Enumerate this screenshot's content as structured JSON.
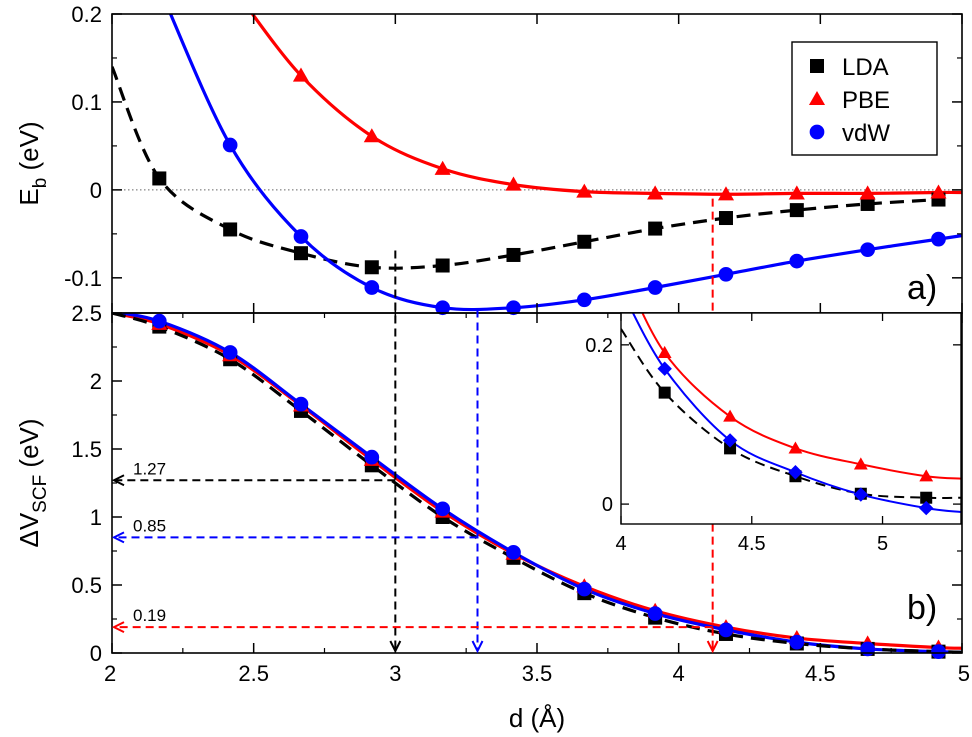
{
  "chart_data": [
    {
      "type": "line",
      "panel": "a)",
      "ylabel": "E",
      "ylabel_sub": "b",
      "ylabel_unit": " (eV)",
      "xlim": [
        2,
        5
      ],
      "ylim": [
        -0.14,
        0.2
      ],
      "yticks": [
        {
          "v": 0.2,
          "label": "0.2"
        },
        {
          "v": 0.1,
          "label": "0.1"
        },
        {
          "v": 0,
          "label": "0"
        },
        {
          "v": -0.1,
          "label": "-0.1"
        }
      ],
      "zero_line": true,
      "legend": {
        "position": "top-right",
        "entries": [
          "LDA",
          "PBE",
          "vdW"
        ]
      },
      "series": [
        {
          "name": "LDA",
          "color": "#000000",
          "marker": "square",
          "line": "dashed",
          "x": [
            2.167,
            2.417,
            2.667,
            2.917,
            3.167,
            3.417,
            3.667,
            3.917,
            4.167,
            4.417,
            4.667,
            4.917
          ],
          "y": [
            0.013,
            -0.045,
            -0.072,
            -0.088,
            -0.086,
            -0.074,
            -0.059,
            -0.044,
            -0.032,
            -0.023,
            -0.016,
            -0.011
          ]
        },
        {
          "name": "PBE",
          "color": "#ff0000",
          "marker": "triangle",
          "line": "solid",
          "x": [
            2.667,
            2.917,
            3.167,
            3.417,
            3.667,
            3.917,
            4.167,
            4.417,
            4.667,
            4.917
          ],
          "y": [
            0.13,
            0.061,
            0.024,
            0.006,
            -0.002,
            -0.004,
            -0.005,
            -0.004,
            -0.004,
            -0.003
          ]
        },
        {
          "name": "vdW",
          "color": "#0000ff",
          "marker": "circle",
          "line": "solid",
          "x": [
            2.417,
            2.667,
            2.917,
            3.167,
            3.417,
            3.667,
            3.917,
            4.167,
            4.417,
            4.667,
            4.917
          ],
          "y": [
            0.051,
            -0.053,
            -0.111,
            -0.134,
            -0.134,
            -0.125,
            -0.111,
            -0.096,
            -0.081,
            -0.068,
            -0.056
          ]
        }
      ]
    },
    {
      "type": "line",
      "panel": "b)",
      "ylabel": "ΔV",
      "ylabel_sub": "SCF",
      "ylabel_unit": " (eV)",
      "xlabel": "d (Å)",
      "xlim": [
        2,
        5
      ],
      "ylim": [
        0,
        2.5
      ],
      "xticks": [
        {
          "v": 2,
          "label": "2"
        },
        {
          "v": 2.5,
          "label": "2.5"
        },
        {
          "v": 3,
          "label": "3"
        },
        {
          "v": 3.5,
          "label": "3.5"
        },
        {
          "v": 4,
          "label": "4"
        },
        {
          "v": 4.5,
          "label": "4.5"
        },
        {
          "v": 5,
          "label": "5"
        }
      ],
      "yticks": [
        {
          "v": 2.5,
          "label": "2.5"
        },
        {
          "v": 2,
          "label": "2"
        },
        {
          "v": 1.5,
          "label": "1.5"
        },
        {
          "v": 1,
          "label": "1"
        },
        {
          "v": 0.5,
          "label": "0.5"
        },
        {
          "v": 0,
          "label": "0"
        }
      ],
      "series": [
        {
          "name": "LDA",
          "color": "#000000",
          "marker": "square",
          "line": "dashed",
          "x": [
            2.167,
            2.417,
            2.667,
            2.917,
            3.167,
            3.417,
            3.667,
            3.917,
            4.167,
            4.417,
            4.667,
            4.917
          ],
          "y": [
            2.4,
            2.16,
            1.78,
            1.38,
            1.0,
            0.7,
            0.44,
            0.26,
            0.14,
            0.07,
            0.03,
            0.01
          ]
        },
        {
          "name": "PBE",
          "color": "#ff0000",
          "marker": "triangle",
          "line": "solid",
          "x": [
            2.167,
            2.417,
            2.667,
            2.917,
            3.167,
            3.417,
            3.667,
            3.917,
            4.167,
            4.417,
            4.667,
            4.917
          ],
          "y": [
            2.42,
            2.19,
            1.82,
            1.42,
            1.04,
            0.73,
            0.49,
            0.31,
            0.19,
            0.11,
            0.07,
            0.04
          ]
        },
        {
          "name": "vdW",
          "color": "#0000ff",
          "marker": "circle",
          "line": "solid",
          "x": [
            2.167,
            2.417,
            2.667,
            2.917,
            3.167,
            3.417,
            3.667,
            3.917,
            4.167,
            4.417,
            4.667,
            4.917
          ],
          "y": [
            2.44,
            2.21,
            1.83,
            1.44,
            1.06,
            0.74,
            0.47,
            0.29,
            0.17,
            0.08,
            0.03,
            0.01
          ]
        }
      ],
      "annotations": [
        {
          "label": "1.27",
          "color": "#000000",
          "y": 1.27,
          "x_from": 3.0
        },
        {
          "label": "0.85",
          "color": "#0000ff",
          "y": 0.85,
          "x_from": 3.29
        },
        {
          "label": "0.19",
          "color": "#ff0000",
          "y": 0.19,
          "x_from": 4.12
        }
      ]
    },
    {
      "type": "line",
      "panel": "inset",
      "xlim": [
        4,
        5.3
      ],
      "ylim": [
        -0.025,
        0.24
      ],
      "xticks": [
        {
          "v": 4,
          "label": "4"
        },
        {
          "v": 4.5,
          "label": "4.5"
        },
        {
          "v": 5,
          "label": "5"
        }
      ],
      "yticks": [
        {
          "v": 0.2,
          "label": "0.2"
        },
        {
          "v": 0,
          "label": "0"
        }
      ],
      "series": [
        {
          "name": "LDA",
          "color": "#000000",
          "marker": "square",
          "line": "dashed",
          "x": [
            4.167,
            4.417,
            4.667,
            4.917,
            5.167
          ],
          "y": [
            0.14,
            0.07,
            0.035,
            0.013,
            0.008
          ]
        },
        {
          "name": "PBE",
          "color": "#ff0000",
          "marker": "triangle",
          "line": "solid",
          "x": [
            4.167,
            4.417,
            4.667,
            4.917,
            5.167
          ],
          "y": [
            0.19,
            0.11,
            0.07,
            0.05,
            0.035
          ]
        },
        {
          "name": "vdW",
          "color": "#0000ff",
          "marker": "diamond",
          "line": "solid",
          "x": [
            4.167,
            4.417,
            4.667,
            4.917,
            5.167
          ],
          "y": [
            0.17,
            0.08,
            0.04,
            0.012,
            -0.005
          ]
        }
      ]
    }
  ],
  "guides": {
    "lda_min_x": 3.0,
    "vdw_min_x": 3.29,
    "pbe_x": 4.12
  }
}
